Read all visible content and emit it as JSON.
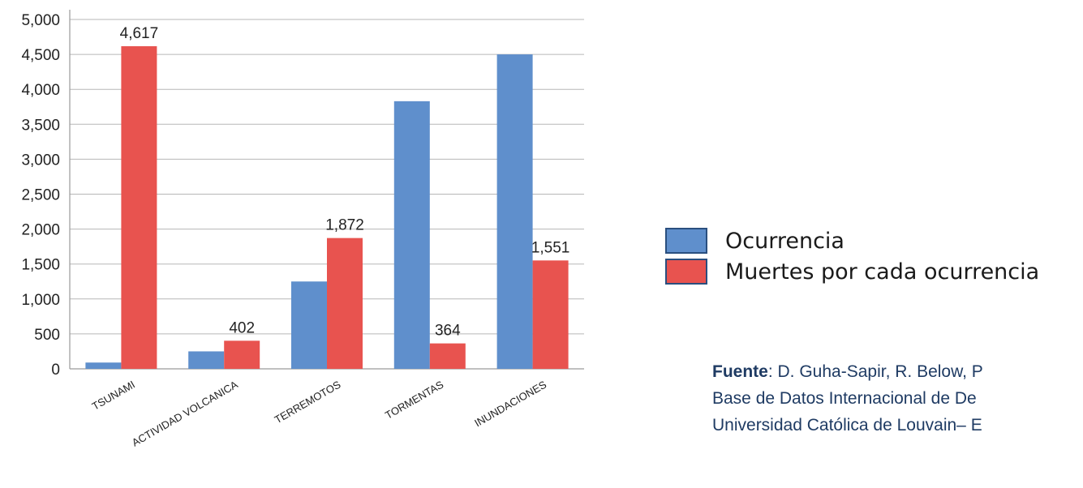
{
  "chart_data": {
    "type": "bar",
    "categories": [
      "TSUNAMI",
      "ACTIVIDAD VOLCANICA",
      "TERREMOTOS",
      "TORMENTAS",
      "INUNDACIONES"
    ],
    "series": [
      {
        "name": "Ocurrencia",
        "color": "#5f8fcc",
        "values": [
          90,
          250,
          1250,
          3830,
          4500
        ]
      },
      {
        "name": "Muertes por cada ocurrencia",
        "color": "#e8534f",
        "values": [
          4617,
          402,
          1872,
          364,
          1551
        ]
      }
    ],
    "data_labels": [
      "4,617",
      "402",
      "1,872",
      "364",
      "1,551"
    ],
    "y_ticks": [
      "0",
      "500",
      "1,000",
      "1,500",
      "2,000",
      "2,500",
      "3,000",
      "3,500",
      "4,000",
      "4,500",
      "5,000"
    ],
    "ylim": [
      0,
      5000
    ],
    "grid": true,
    "legend_position": "right"
  },
  "legend": {
    "items": [
      {
        "label": "Ocurrencia",
        "color": "#5f8fcc"
      },
      {
        "label": "Muertes por cada ocurrencia",
        "color": "#e8534f"
      }
    ]
  },
  "source": {
    "label": "Fuente",
    "line1": ": D. Guha-Sapir, R. Below, P",
    "line2": "Base de Datos Internacional de De",
    "line3": "Universidad Católica de Louvain– E"
  }
}
